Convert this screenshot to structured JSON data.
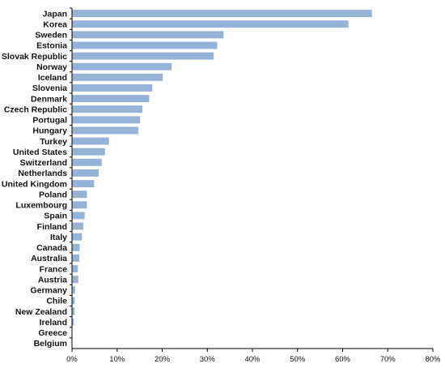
{
  "chart_data": {
    "type": "bar",
    "orientation": "horizontal",
    "title": "",
    "xlabel": "",
    "ylabel": "",
    "xlim": [
      0,
      80
    ],
    "x_ticks": [
      "0%",
      "10%",
      "20%",
      "30%",
      "40%",
      "50%",
      "60%",
      "70%",
      "80%"
    ],
    "grid": false,
    "bar_color": "#95b3d7",
    "categories": [
      "Japan",
      "Korea",
      "Sweden",
      "Estonia",
      "Slovak Republic",
      "Norway",
      "Iceland",
      "Slovenia",
      "Denmark",
      "Czech Republic",
      "Portugal",
      "Hungary",
      "Turkey",
      "United States",
      "Switzerland",
      "Netherlands",
      "United Kingdom",
      "Poland",
      "Luxembourg",
      "Spain",
      "Finland",
      "Italy",
      "Canada",
      "Australia",
      "France",
      "Austria",
      "Germany",
      "Chile",
      "New Zealand",
      "Ireland",
      "Greece",
      "Belgium"
    ],
    "values": [
      66.5,
      61.3,
      33.6,
      32.2,
      31.4,
      22.1,
      20.1,
      17.8,
      17.1,
      15.6,
      15.1,
      14.7,
      8.2,
      7.3,
      6.6,
      5.9,
      4.9,
      3.3,
      3.3,
      2.8,
      2.5,
      2.2,
      1.7,
      1.6,
      1.3,
      1.4,
      0.7,
      0.6,
      0.6,
      0.4,
      0.0,
      0.0
    ]
  }
}
